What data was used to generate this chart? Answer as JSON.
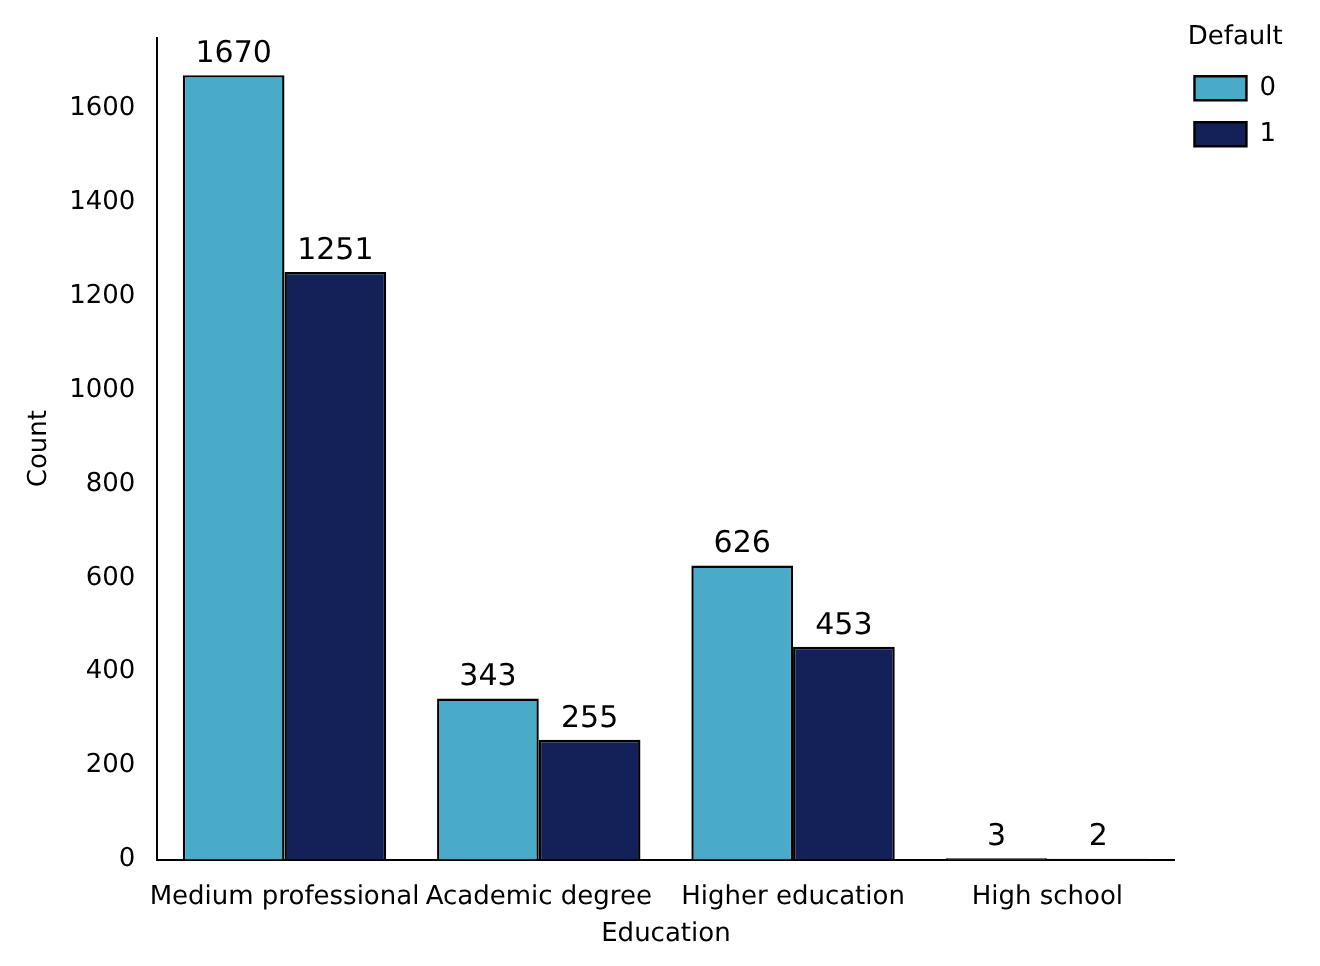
{
  "chart_data": {
    "type": "bar",
    "xlabel": "Education",
    "ylabel": "Count",
    "legend_title": "Default",
    "categories": [
      "Medium professional",
      "Academic degree",
      "Higher education",
      "High school"
    ],
    "series": [
      {
        "name": "0",
        "color": "#4aabc8",
        "values": [
          1670,
          343,
          626,
          3
        ]
      },
      {
        "name": "1",
        "color": "#142158",
        "values": [
          1251,
          255,
          453,
          2
        ]
      }
    ],
    "ylim": [
      0,
      1750
    ],
    "yticks": [
      0,
      200,
      400,
      600,
      800,
      1000,
      1200,
      1400,
      1600
    ],
    "grid": false,
    "legend": "top right",
    "data_labels": true
  }
}
